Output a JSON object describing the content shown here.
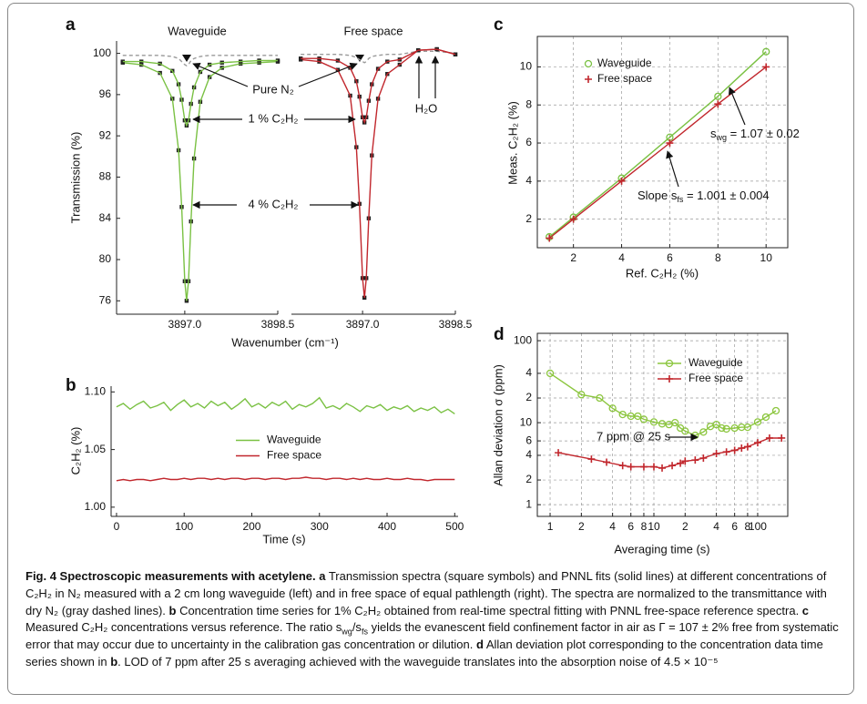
{
  "chart_data": [
    {
      "type": "line",
      "label": "a",
      "ylabel": "Transmission (%)",
      "xlabel": "Wavenumber (cm⁻¹)",
      "ylim": [
        74.7,
        101.2
      ],
      "yticks": [
        76,
        80,
        84,
        88,
        92,
        96,
        100
      ],
      "grid": false,
      "annotations": [
        "Pure N₂",
        "1 % C₂H₂",
        "4 % C₂H₂",
        "H₂O"
      ],
      "panels": [
        {
          "title": "Waveguide",
          "xlim": [
            3895.9,
            3898.5
          ],
          "xticks": [
            {
              "value": 3897,
              "label": "3897.0"
            },
            {
              "value": 3898.5,
              "label": "3898.5"
            }
          ],
          "x": [
            3896.0,
            3896.3,
            3896.6,
            3896.8,
            3896.9,
            3896.95,
            3897.0,
            3897.03,
            3897.06,
            3897.1,
            3897.15,
            3897.25,
            3897.4,
            3897.6,
            3897.9,
            3898.2,
            3898.5
          ],
          "series": [
            {
              "color": "#9a9a9a",
              "dashed": true,
              "values": [
                99.8,
                99.8,
                99.8,
                99.7,
                99.5,
                99.2,
                98.9,
                98.8,
                98.9,
                99.3,
                99.5,
                99.7,
                99.8,
                99.8,
                99.8,
                99.8,
                99.8
              ]
            },
            {
              "color": "#7ac143",
              "marker": "square",
              "marker_color": "#222222",
              "values": [
                99.1,
                98.9,
                98.1,
                95.6,
                90.6,
                85.1,
                77.9,
                76.0,
                77.9,
                83.7,
                89.8,
                95.3,
                97.7,
                98.6,
                99.0,
                99.1,
                99.2
              ]
            },
            {
              "color": "#7ac143",
              "marker": "square",
              "marker_color": "#222222",
              "values": [
                99.2,
                99.2,
                99.0,
                98.3,
                97.0,
                95.5,
                93.5,
                93.0,
                93.5,
                95.1,
                96.7,
                98.2,
                98.9,
                99.1,
                99.2,
                99.3,
                99.3
              ]
            }
          ]
        },
        {
          "title": "Free space",
          "xlim": [
            3895.85,
            3898.5
          ],
          "xticks": [
            {
              "value": 3897,
              "label": "3897.0"
            },
            {
              "value": 3898.5,
              "label": "3898.5"
            }
          ],
          "x": [
            3896.0,
            3896.3,
            3896.6,
            3896.8,
            3896.9,
            3896.95,
            3897.0,
            3897.03,
            3897.06,
            3897.1,
            3897.15,
            3897.25,
            3897.4,
            3897.6,
            3897.9,
            3898.2,
            3898.5
          ],
          "series": [
            {
              "color": "#9a9a9a",
              "dashed": true,
              "values": [
                99.9,
                99.9,
                99.9,
                99.8,
                99.6,
                99.4,
                99.2,
                99.1,
                99.2,
                99.5,
                99.7,
                99.8,
                99.9,
                99.9,
                100.2,
                100.2,
                100.0
              ]
            },
            {
              "color": "#c1272d",
              "marker": "square",
              "marker_color": "#222222",
              "values": [
                99.4,
                99.2,
                98.4,
                95.9,
                90.9,
                85.4,
                78.2,
                76.3,
                78.2,
                84.0,
                90.1,
                95.6,
                98.0,
                98.9,
                100.3,
                100.4,
                99.9
              ]
            },
            {
              "color": "#c1272d",
              "marker": "square",
              "marker_color": "#222222",
              "values": [
                99.5,
                99.5,
                99.3,
                98.6,
                97.3,
                95.8,
                93.8,
                93.3,
                93.8,
                95.4,
                97.0,
                98.5,
                99.2,
                99.4,
                100.3,
                100.4,
                99.9
              ]
            }
          ]
        }
      ]
    },
    {
      "type": "line",
      "label": "b",
      "ylabel": "C₂H₂ (%)",
      "xlabel": "Time (s)",
      "grid": false,
      "legend": "center",
      "xlim": [
        -8,
        505
      ],
      "xticks": [
        0,
        100,
        200,
        300,
        400,
        500
      ],
      "ylim": [
        0.992,
        1.105
      ],
      "yticks": [
        {
          "value": 1.0,
          "label": "1.00"
        },
        {
          "value": 1.05,
          "label": "1.05"
        },
        {
          "value": 1.1,
          "label": "1.10"
        }
      ],
      "x": [
        0,
        10,
        20,
        30,
        40,
        50,
        60,
        70,
        80,
        90,
        100,
        110,
        120,
        130,
        140,
        150,
        160,
        170,
        180,
        190,
        200,
        210,
        220,
        230,
        240,
        250,
        260,
        270,
        280,
        290,
        300,
        310,
        320,
        330,
        340,
        350,
        360,
        370,
        380,
        390,
        400,
        410,
        420,
        430,
        440,
        450,
        460,
        470,
        480,
        490,
        500
      ],
      "series": [
        {
          "name": "Waveguide",
          "color": "#7ac143",
          "values": [
            1.087,
            1.09,
            1.085,
            1.089,
            1.092,
            1.086,
            1.088,
            1.091,
            1.084,
            1.089,
            1.093,
            1.087,
            1.09,
            1.086,
            1.092,
            1.088,
            1.091,
            1.085,
            1.089,
            1.094,
            1.087,
            1.09,
            1.086,
            1.091,
            1.088,
            1.092,
            1.085,
            1.089,
            1.087,
            1.09,
            1.095,
            1.086,
            1.088,
            1.085,
            1.09,
            1.087,
            1.083,
            1.088,
            1.086,
            1.089,
            1.084,
            1.087,
            1.085,
            1.088,
            1.083,
            1.086,
            1.084,
            1.087,
            1.082,
            1.085,
            1.081
          ]
        },
        {
          "name": "Free space",
          "color": "#c1272d",
          "values": [
            1.023,
            1.024,
            1.023,
            1.024,
            1.024,
            1.023,
            1.024,
            1.025,
            1.024,
            1.024,
            1.025,
            1.024,
            1.025,
            1.025,
            1.024,
            1.025,
            1.024,
            1.025,
            1.025,
            1.024,
            1.025,
            1.025,
            1.024,
            1.025,
            1.025,
            1.024,
            1.025,
            1.025,
            1.026,
            1.025,
            1.025,
            1.024,
            1.025,
            1.025,
            1.024,
            1.025,
            1.024,
            1.025,
            1.024,
            1.024,
            1.025,
            1.024,
            1.024,
            1.025,
            1.024,
            1.024,
            1.023,
            1.024,
            1.024,
            1.024,
            1.024
          ]
        }
      ]
    },
    {
      "type": "scatter",
      "label": "c",
      "ylabel": "Meas. C₂H₂ (%)",
      "xlabel": "Ref. C₂H₂ (%)",
      "grid": true,
      "frame": "box",
      "legend": "upper left",
      "xlim": [
        0.5,
        10.9
      ],
      "xticks": [
        2,
        4,
        6,
        8,
        10
      ],
      "ylim": [
        0.5,
        11.6
      ],
      "yticks": [
        2,
        4,
        6,
        8,
        10
      ],
      "x": [
        1,
        2,
        4,
        6,
        8,
        10
      ],
      "series": [
        {
          "name": "Waveguide",
          "color": "#7ac143",
          "marker": "circle",
          "values": [
            1.07,
            2.1,
            4.15,
            6.3,
            8.45,
            10.8
          ]
        },
        {
          "name": "Free space",
          "color": "#c1272d",
          "marker": "plus",
          "values": [
            1.0,
            2.0,
            4.0,
            6.0,
            8.05,
            10.0
          ]
        }
      ],
      "annotations": [
        {
          "runs": [
            {
              "text": "s"
            },
            {
              "text": "wg",
              "sub": true
            },
            {
              "text": " = 1.07 ± 0.02"
            }
          ]
        },
        {
          "runs": [
            {
              "text": "Slope s"
            },
            {
              "text": "fs",
              "sub": true
            },
            {
              "text": " = 1.001 ± 0.004"
            }
          ]
        }
      ]
    },
    {
      "type": "line",
      "label": "d",
      "ylabel": "Allan deviation σ (ppm)",
      "xlabel": "Averaging time (s)",
      "grid": true,
      "frame": "box",
      "legend": "upper center",
      "log_x": true,
      "log_y": true,
      "xlim": [
        0.753,
        195
      ],
      "xticks": [
        1,
        2,
        4,
        6,
        8,
        10,
        {
          "value": 20,
          "label": "2"
        },
        {
          "value": 40,
          "label": "4"
        },
        {
          "value": 60,
          "label": "6"
        },
        {
          "value": 80,
          "label": "8"
        },
        100
      ],
      "ylim": [
        0.72,
        123
      ],
      "yticks": [
        1,
        2,
        4,
        6,
        10,
        {
          "value": 20,
          "label": "2"
        },
        {
          "value": 40,
          "label": "4"
        },
        100
      ],
      "series": [
        {
          "name": "Waveguide",
          "color": "#8cc63f",
          "marker": "circle",
          "x": [
            1,
            2,
            3,
            4,
            5,
            6,
            7,
            8,
            10,
            12,
            14,
            16,
            18,
            20,
            25,
            30,
            35,
            40,
            45,
            50,
            60,
            70,
            80,
            100,
            120,
            150
          ],
          "values": [
            40,
            22,
            20,
            15,
            12.6,
            12,
            12,
            11,
            10.2,
            9.7,
            9.5,
            10,
            8.6,
            7.9,
            7,
            7.7,
            9,
            9.5,
            8.6,
            8.4,
            8.6,
            8.8,
            8.8,
            10.2,
            11.7,
            14
          ]
        },
        {
          "name": "Free space",
          "color": "#c1272d",
          "marker": "plus",
          "x": [
            1.2,
            2.5,
            3.5,
            5,
            6,
            8,
            10,
            12,
            15,
            18,
            20,
            25,
            30,
            40,
            50,
            60,
            70,
            80,
            100,
            130,
            170
          ],
          "values": [
            4.3,
            3.6,
            3.3,
            3.0,
            2.9,
            2.9,
            2.9,
            2.8,
            3.0,
            3.2,
            3.4,
            3.5,
            3.7,
            4.2,
            4.4,
            4.6,
            4.9,
            5.1,
            5.7,
            6.5,
            6.5
          ]
        }
      ],
      "annotations": [
        "7 ppm @ 25 s"
      ]
    }
  ],
  "caption": {
    "runs": [
      {
        "text": "Fig. 4 Spectroscopic measurements with acetylene. a",
        "bold": true
      },
      {
        "text": " Transmission spectra (square symbols) and PNNL fits (solid lines) at different concentrations of C₂H₂ in N₂ measured with a 2 cm long waveguide (left) and in free space of equal pathlength (right). The spectra are normalized to the transmittance with dry N₂ (gray dashed lines). "
      },
      {
        "text": "b",
        "bold": true
      },
      {
        "text": " Concentration time series for 1% C₂H₂ obtained from real-time spectral fitting with PNNL free-space reference spectra. "
      },
      {
        "text": "c",
        "bold": true
      },
      {
        "text": " Measured C₂H₂ concentrations versus reference. The ratio s"
      },
      {
        "text": "wg",
        "sub": true
      },
      {
        "text": "/s"
      },
      {
        "text": "fs",
        "sub": true
      },
      {
        "text": " yields the evanescent field confinement factor in air as Γ = 107 ± 2% free from systematic error that may occur due to uncertainty in the calibration gas concentration or dilution. "
      },
      {
        "text": "d",
        "bold": true
      },
      {
        "text": " Allan deviation plot corresponding to the concentration data time series shown in "
      },
      {
        "text": "b",
        "bold": true
      },
      {
        "text": ". LOD of 7 ppm after 25 s averaging achieved with the waveguide translates into the absorption noise of 4.5 × 10⁻⁵"
      }
    ]
  }
}
